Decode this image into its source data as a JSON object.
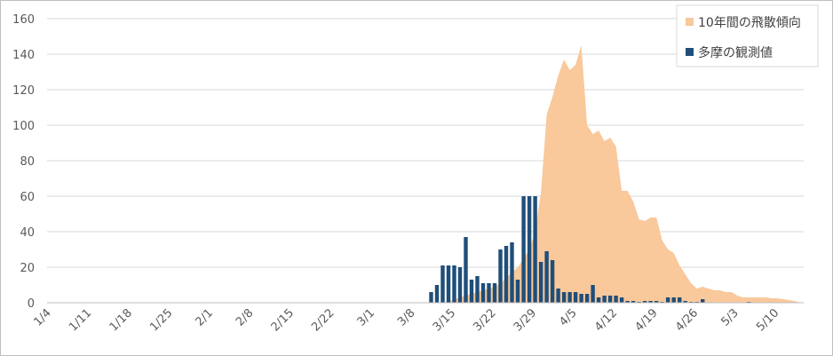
{
  "chart_data": {
    "type": "bar",
    "title": "",
    "xlabel": "",
    "ylabel": "",
    "ylim": [
      0,
      160
    ],
    "yticks": [
      0,
      20,
      40,
      60,
      80,
      100,
      120,
      140,
      160
    ],
    "x_start": "1/4",
    "x_end": "5/14",
    "x_tick_labels": [
      "1/4",
      "1/11",
      "1/18",
      "1/25",
      "2/1",
      "2/8",
      "2/15",
      "2/22",
      "3/1",
      "3/8",
      "3/15",
      "3/22",
      "3/29",
      "4/5",
      "4/12",
      "4/19",
      "4/26",
      "5/3",
      "5/10"
    ],
    "grid": "horizontal",
    "legend_position": "top-right",
    "series": [
      {
        "name": "10年間の飛散傾向",
        "type": "area",
        "color": "#f9c89b",
        "points": [
          [
            "3/13",
            0
          ],
          [
            "3/14",
            1
          ],
          [
            "3/15",
            2
          ],
          [
            "3/16",
            3
          ],
          [
            "3/17",
            4
          ],
          [
            "3/18",
            5
          ],
          [
            "3/19",
            6
          ],
          [
            "3/20",
            7
          ],
          [
            "3/21",
            8
          ],
          [
            "3/22",
            9
          ],
          [
            "3/23",
            11
          ],
          [
            "3/24",
            14
          ],
          [
            "3/25",
            17
          ],
          [
            "3/26",
            20
          ],
          [
            "3/27",
            25
          ],
          [
            "3/28",
            30
          ],
          [
            "3/29",
            40
          ],
          [
            "3/30",
            62
          ],
          [
            "3/31",
            106
          ],
          [
            "4/1",
            116
          ],
          [
            "4/2",
            128
          ],
          [
            "4/3",
            137
          ],
          [
            "4/4",
            131
          ],
          [
            "4/5",
            134
          ],
          [
            "4/6",
            145
          ],
          [
            "4/7",
            100
          ],
          [
            "4/8",
            95
          ],
          [
            "4/9",
            97
          ],
          [
            "4/10",
            91
          ],
          [
            "4/11",
            93
          ],
          [
            "4/12",
            88
          ],
          [
            "4/13",
            63
          ],
          [
            "4/14",
            63
          ],
          [
            "4/15",
            57
          ],
          [
            "4/16",
            47
          ],
          [
            "4/17",
            46
          ],
          [
            "4/18",
            48
          ],
          [
            "4/19",
            48
          ],
          [
            "4/20",
            35
          ],
          [
            "4/21",
            30
          ],
          [
            "4/22",
            28
          ],
          [
            "4/23",
            21
          ],
          [
            "4/24",
            16
          ],
          [
            "4/25",
            11
          ],
          [
            "4/26",
            8
          ],
          [
            "4/27",
            9
          ],
          [
            "4/28",
            8
          ],
          [
            "4/29",
            7
          ],
          [
            "4/30",
            7
          ],
          [
            "5/1",
            6
          ],
          [
            "5/2",
            6
          ],
          [
            "5/3",
            4
          ],
          [
            "5/4",
            3
          ],
          [
            "5/5",
            3
          ],
          [
            "5/6",
            3
          ],
          [
            "5/7",
            3
          ],
          [
            "5/8",
            3
          ],
          [
            "5/9",
            2.5
          ],
          [
            "5/10",
            2.5
          ],
          [
            "5/11",
            2
          ],
          [
            "5/12",
            1.5
          ],
          [
            "5/13",
            1
          ],
          [
            "5/14",
            0
          ]
        ]
      },
      {
        "name": "多摩の観測値",
        "type": "bar",
        "color": "#1f4e79",
        "points": [
          [
            "3/11",
            6
          ],
          [
            "3/12",
            10
          ],
          [
            "3/13",
            21
          ],
          [
            "3/14",
            21
          ],
          [
            "3/15",
            21
          ],
          [
            "3/16",
            20
          ],
          [
            "3/17",
            37
          ],
          [
            "3/18",
            13
          ],
          [
            "3/19",
            15
          ],
          [
            "3/20",
            11
          ],
          [
            "3/21",
            11
          ],
          [
            "3/22",
            11
          ],
          [
            "3/23",
            30
          ],
          [
            "3/24",
            32
          ],
          [
            "3/25",
            34
          ],
          [
            "3/26",
            13
          ],
          [
            "3/27",
            60
          ],
          [
            "3/28",
            60
          ],
          [
            "3/29",
            60
          ],
          [
            "3/30",
            23
          ],
          [
            "3/31",
            29
          ],
          [
            "4/1",
            24
          ],
          [
            "4/2",
            8
          ],
          [
            "4/3",
            6
          ],
          [
            "4/4",
            6
          ],
          [
            "4/5",
            6
          ],
          [
            "4/6",
            5
          ],
          [
            "4/7",
            5
          ],
          [
            "4/8",
            10
          ],
          [
            "4/9",
            3
          ],
          [
            "4/10",
            4
          ],
          [
            "4/11",
            4
          ],
          [
            "4/12",
            4
          ],
          [
            "4/13",
            3
          ],
          [
            "4/14",
            1
          ],
          [
            "4/15",
            1
          ],
          [
            "4/16",
            0.5
          ],
          [
            "4/17",
            1
          ],
          [
            "4/18",
            1
          ],
          [
            "4/19",
            1
          ],
          [
            "4/20",
            0.5
          ],
          [
            "4/21",
            3
          ],
          [
            "4/22",
            3
          ],
          [
            "4/23",
            3
          ],
          [
            "4/24",
            1
          ],
          [
            "4/25",
            0.5
          ],
          [
            "4/26",
            0.5
          ],
          [
            "4/27",
            2
          ],
          [
            "5/5",
            0.5
          ]
        ]
      }
    ]
  }
}
